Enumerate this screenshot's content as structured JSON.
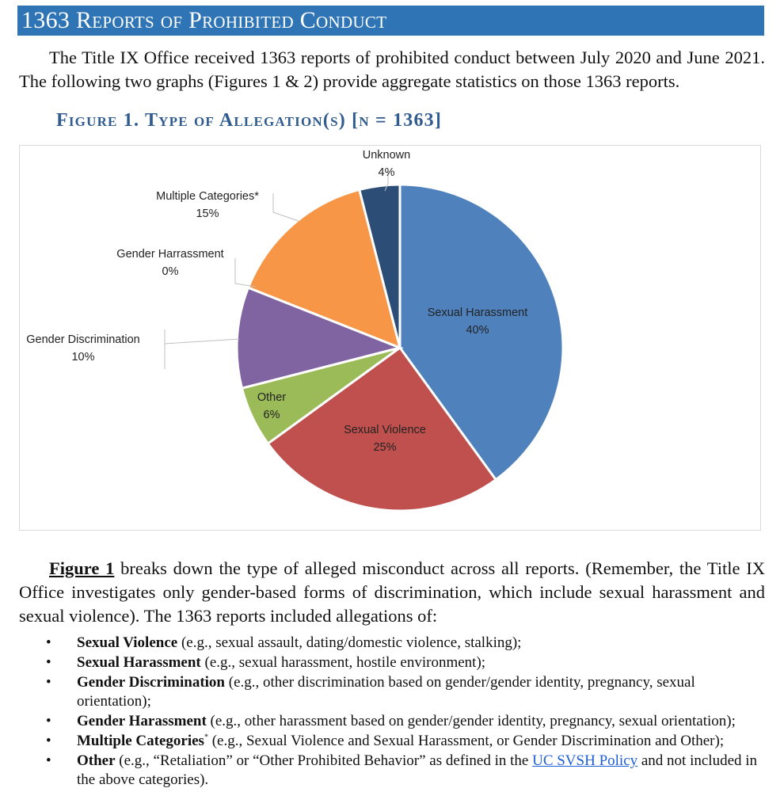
{
  "header": {
    "title": "1363 Reports of Prohibited Conduct"
  },
  "intro": "The Title IX Office received 1363 reports of prohibited conduct between July 2020 and June 2021. The following two graphs (Figures 1 & 2) provide aggregate statistics on those 1363 reports.",
  "figure": {
    "title": "Figure 1.  Type of Allegation(s) [n = 1363]"
  },
  "chart_data": {
    "type": "pie",
    "title": "Figure 1.  Type of Allegation(s) [n = 1363]",
    "slices": [
      {
        "name": "Sexual Harassment",
        "value": 40,
        "label": "40%",
        "color": "#4f81bd"
      },
      {
        "name": "Sexual Violence",
        "value": 25,
        "label": "25%",
        "color": "#c0504d"
      },
      {
        "name": "Other",
        "value": 6,
        "label": "6%",
        "color": "#9bbb59"
      },
      {
        "name": "Gender Discrimination",
        "value": 10,
        "label": "10%",
        "color": "#8064a2"
      },
      {
        "name": "Gender Harrassment",
        "value": 0,
        "label": "0%",
        "color": "#4bacc6"
      },
      {
        "name": "Multiple Categories*",
        "value": 15,
        "label": "15%",
        "color": "#f79646"
      },
      {
        "name": "Unknown",
        "value": 4,
        "label": "4%",
        "color": "#2c4d75"
      }
    ]
  },
  "body": {
    "fig_ref": "Figure 1",
    "text": " breaks down the type of alleged misconduct across all reports. (Remember, the Title IX Office investigates only gender-based forms of discrimination, which include sexual harassment and sexual violence). The 1363 reports included allegations of:"
  },
  "list": [
    {
      "term": "Sexual Violence",
      "desc": " (e.g., sexual assault, dating/domestic violence, stalking);"
    },
    {
      "term": "Sexual Harassment",
      "desc": " (e.g., sexual harassment, hostile environment);"
    },
    {
      "term": "Gender Discrimination",
      "desc": " (e.g., other discrimination based on gender/gender identity, pregnancy, sexual orientation);"
    },
    {
      "term": "Gender Harassment",
      "desc": " (e.g., other harassment based on gender/gender identity, pregnancy, sexual orientation);"
    },
    {
      "term": "Multiple Categories",
      "sup": "*",
      "desc": " (e.g., Sexual Violence and Sexual Harassment, or Gender Discrimination and Other);"
    },
    {
      "term": "Other",
      "desc_a": " (e.g., “Retaliation” or “Other Prohibited Behavior” as defined in the ",
      "link": "UC SVSH Policy",
      "desc_b": " and not included in the above categories)."
    }
  ],
  "bullet": "•"
}
